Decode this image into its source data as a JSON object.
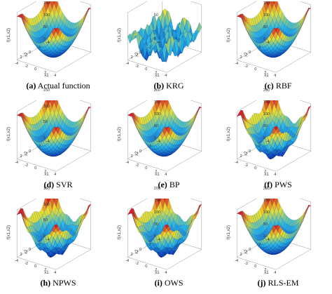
{
  "figure": {
    "panels": [
      {
        "letter": "(a)",
        "name": "Actual function",
        "kind": "smooth"
      },
      {
        "letter": "(b)",
        "name": "KRG",
        "kind": "bumpy"
      },
      {
        "letter": "(c)",
        "name": "RBF",
        "kind": "smooth"
      },
      {
        "letter": "(d)",
        "name": "SVR",
        "kind": "smooth"
      },
      {
        "letter": "(e)",
        "name": "BP",
        "kind": "smooth"
      },
      {
        "letter": "(f)",
        "name": "PWS",
        "kind": "wavy"
      },
      {
        "letter": "(h)",
        "name": "NPWS",
        "kind": "wavy"
      },
      {
        "letter": "(i)",
        "name": "OWS",
        "kind": "wavy"
      },
      {
        "letter": "(j)",
        "name": "RLS-EM",
        "kind": "smooth"
      }
    ],
    "common_axes": {
      "xlabel": "x1",
      "ylabel": "x2",
      "zlabel": "f(x1,x2)",
      "x_ticks": [
        "-4",
        "-2",
        "0",
        "2",
        "4"
      ],
      "y_ticks": [
        "-4",
        "-2",
        "0",
        "2"
      ],
      "z_ticks_default": [
        "0",
        "50",
        "100",
        "150",
        "200"
      ]
    },
    "colors": {
      "low": "#0a1fa8",
      "mid": "#27b6e8",
      "high_mid": "#f0e22a",
      "high": "#d81f1f"
    }
  },
  "chart_data": [
    {
      "type": "surface",
      "title": "(a) Actual function",
      "xlabel": "x1",
      "ylabel": "x2",
      "zlabel": "f(x1,x2)",
      "zlim": [
        0,
        200
      ],
      "z_ticks": [
        "0",
        "50",
        "100",
        "150",
        "200"
      ]
    },
    {
      "type": "surface",
      "title": "(b) KRG",
      "xlabel": "x1",
      "ylabel": "x2",
      "zlabel": "f(x1,x2)",
      "zlim": [
        0,
        100
      ],
      "z_ticks": [
        "0",
        "50",
        "100"
      ]
    },
    {
      "type": "surface",
      "title": "(c) RBF",
      "xlabel": "x1",
      "ylabel": "x2",
      "zlabel": "f(x1,x2)",
      "zlim": [
        0,
        200
      ],
      "z_ticks": [
        "0",
        "50",
        "100",
        "150",
        "200"
      ]
    },
    {
      "type": "surface",
      "title": "(d) SVR",
      "xlabel": "x1",
      "ylabel": "x2",
      "zlabel": "f(x1,x2)",
      "zlim": [
        0,
        150
      ],
      "z_ticks": [
        "0",
        "50",
        "100",
        "150"
      ]
    },
    {
      "type": "surface",
      "title": "(e) BP",
      "xlabel": "x1",
      "ylabel": "x2",
      "zlabel": "f(x1,x2)",
      "zlim": [
        0,
        200
      ],
      "z_ticks": [
        "0",
        "50",
        "100",
        "150",
        "200"
      ]
    },
    {
      "type": "surface",
      "title": "(f) PWS",
      "xlabel": "x1",
      "ylabel": "x2",
      "zlabel": "f(x1,x2)",
      "zlim": [
        0,
        200
      ],
      "z_ticks": [
        "0",
        "50",
        "100",
        "150",
        "200"
      ]
    },
    {
      "type": "surface",
      "title": "(h) NPWS",
      "xlabel": "x1",
      "ylabel": "x2",
      "zlabel": "f(x1,x2)",
      "zlim": [
        0,
        150
      ],
      "z_ticks": [
        "0",
        "50",
        "100",
        "150"
      ]
    },
    {
      "type": "surface",
      "title": "(i) OWS",
      "xlabel": "x1",
      "ylabel": "x2",
      "zlabel": "f(x1,x2)",
      "zlim": [
        0,
        200
      ],
      "z_ticks": [
        "0",
        "50",
        "100",
        "150",
        "200"
      ]
    },
    {
      "type": "surface",
      "title": "(j) RLS-EM",
      "xlabel": "x1",
      "ylabel": "x2",
      "zlabel": "f(x1,x2)",
      "zlim": [
        0,
        200
      ],
      "z_ticks": [
        "0",
        "50",
        "100",
        "150",
        "200"
      ]
    }
  ]
}
